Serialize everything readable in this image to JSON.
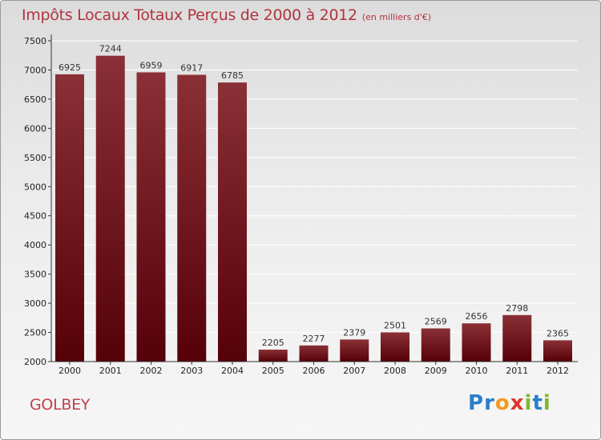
{
  "header": {
    "title": "Impôts Locaux Totaux Perçus de 2000 à 2012",
    "subtitle": "(en milliers d'€)"
  },
  "footer": {
    "commune": "GOLBEY",
    "logo_letters": [
      {
        "ch": "P",
        "color": "#2a7fc9"
      },
      {
        "ch": "r",
        "color": "#2a7fc9"
      },
      {
        "ch": "o",
        "color": "#f39a1e"
      },
      {
        "ch": "x",
        "color": "#e2342b"
      },
      {
        "ch": "i",
        "color": "#7cba2f"
      },
      {
        "ch": "t",
        "color": "#2a7fc9"
      },
      {
        "ch": "i",
        "color": "#7cba2f"
      }
    ]
  },
  "chart_data": {
    "type": "bar",
    "categories": [
      "2000",
      "2001",
      "2002",
      "2003",
      "2004",
      "2005",
      "2006",
      "2007",
      "2008",
      "2009",
      "2010",
      "2011",
      "2012"
    ],
    "values": [
      6925,
      7244,
      6959,
      6917,
      6785,
      2205,
      2277,
      2379,
      2501,
      2569,
      2656,
      2798,
      2365
    ],
    "title": "Impôts Locaux Totaux Perçus de 2000 à 2012",
    "subtitle": "(en milliers d'€)",
    "ylim": [
      2000,
      7500
    ],
    "yticks": [
      2000,
      2500,
      3000,
      3500,
      4000,
      4500,
      5000,
      5500,
      6000,
      6500,
      7000,
      7500
    ],
    "grid": true,
    "bar_color": "#6e1a20"
  }
}
